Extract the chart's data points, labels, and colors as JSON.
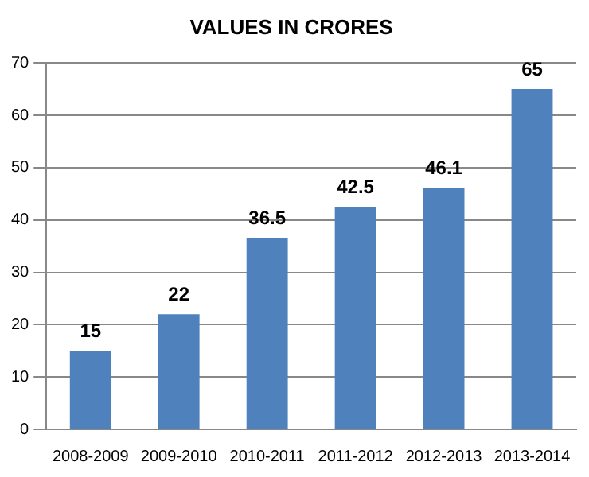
{
  "chart_data": {
    "type": "bar",
    "title": "VALUES IN CRORES",
    "categories": [
      "2008-2009",
      "2009-2010",
      "2010-2011",
      "2011-2012",
      "2012-2013",
      "2013-2014"
    ],
    "values": [
      15,
      22,
      36.5,
      42.5,
      46.1,
      65
    ],
    "color": "#4f81bd",
    "ylim": [
      0,
      70
    ],
    "yticks": [
      0,
      10,
      20,
      30,
      40,
      50,
      60,
      70
    ],
    "grid": "y",
    "data_labels": true,
    "legend": false
  }
}
